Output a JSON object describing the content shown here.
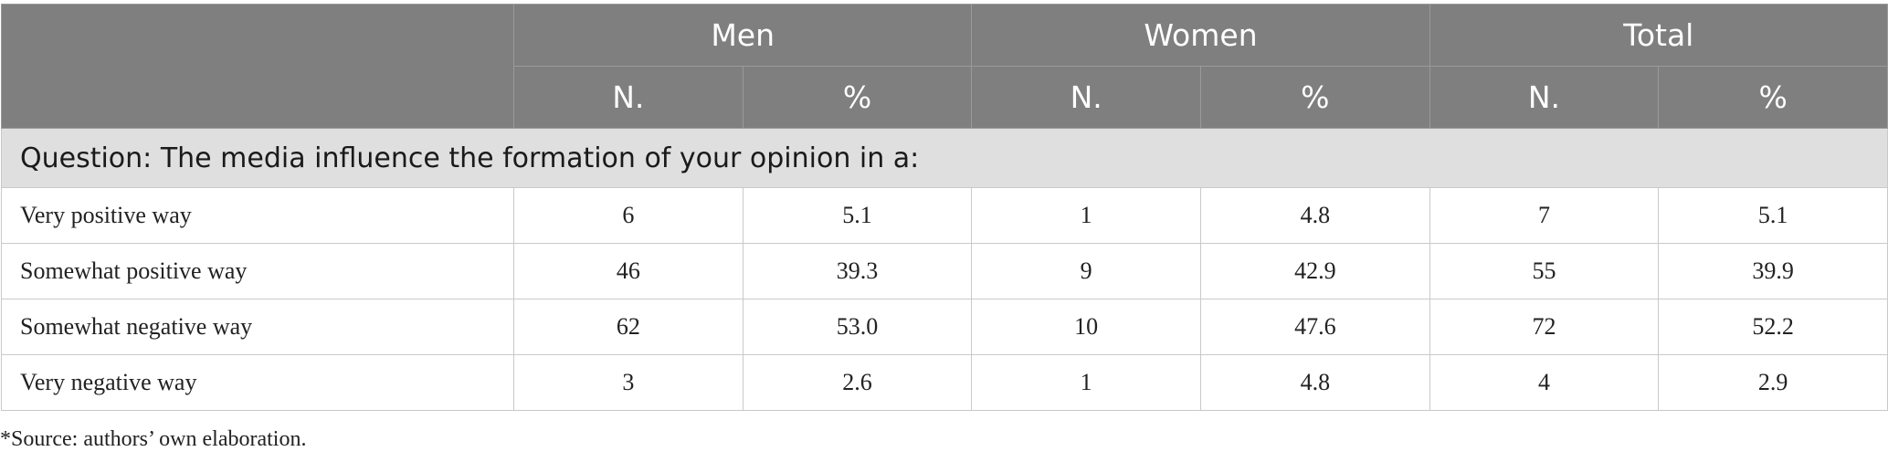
{
  "table": {
    "groups": [
      "Men",
      "Women",
      "Total"
    ],
    "subheaders": [
      "N.",
      "%",
      "N.",
      "%",
      "N.",
      "%"
    ],
    "section_title": "Question: The media influence the formation of your opinion in a:",
    "rows": [
      {
        "label": "Very positive way",
        "cells": [
          "6",
          "5.1",
          "1",
          "4.8",
          "7",
          "5.1"
        ]
      },
      {
        "label": "Somewhat positive way",
        "cells": [
          "46",
          "39.3",
          "9",
          "42.9",
          "55",
          "39.9"
        ]
      },
      {
        "label": "Somewhat negative way",
        "cells": [
          "62",
          "53.0",
          "10",
          "47.6",
          "72",
          "52.2"
        ]
      },
      {
        "label": "Very negative way",
        "cells": [
          "3",
          "2.6",
          "1",
          "4.8",
          "4",
          "2.9"
        ]
      }
    ]
  },
  "footnote": "*Source: authors’ own elaboration.",
  "colors": {
    "header_bg": "#7f7f7f",
    "section_bg": "#e0dfdf"
  }
}
